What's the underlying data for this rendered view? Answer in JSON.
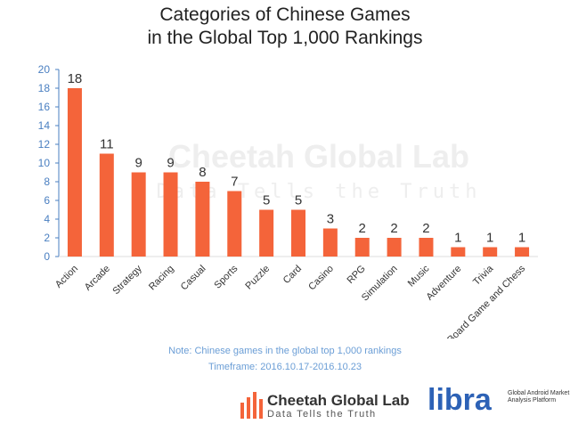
{
  "chart_data": {
    "type": "bar",
    "title": "Categories of Chinese Games\nin the Global Top 1,000 Rankings",
    "categories": [
      "Action",
      "Arcade",
      "Strategy",
      "Racing",
      "Casual",
      "Sports",
      "Puzzle",
      "Card",
      "Casino",
      "RPG",
      "Simulation",
      "Music",
      "Adventure",
      "Trivia",
      "Board Game and Chess"
    ],
    "values": [
      18,
      11,
      9,
      9,
      8,
      7,
      5,
      5,
      3,
      2,
      2,
      2,
      1,
      1,
      1
    ],
    "ylim": [
      0,
      20
    ],
    "yticks": [
      0,
      2,
      4,
      6,
      8,
      10,
      12,
      14,
      16,
      18,
      20
    ],
    "xlabel": "",
    "ylabel": "",
    "grid": false,
    "bar_color": "#f4643a",
    "axis_color": "#4a7fc1"
  },
  "notes": {
    "note": "Note: Chinese games in the global top 1,000 rankings",
    "timeframe": "Timeframe: 2016.10.17-2016.10.23"
  },
  "watermark": {
    "name": "Cheetah Global Lab",
    "tagline": "Data Tells the Truth"
  },
  "logos": {
    "cheetah_name": "Cheetah Global Lab",
    "cheetah_tagline": "Data Tells the Truth",
    "libra_name": "libra",
    "libra_tagline": "Global Android Market Analysis Platform"
  }
}
